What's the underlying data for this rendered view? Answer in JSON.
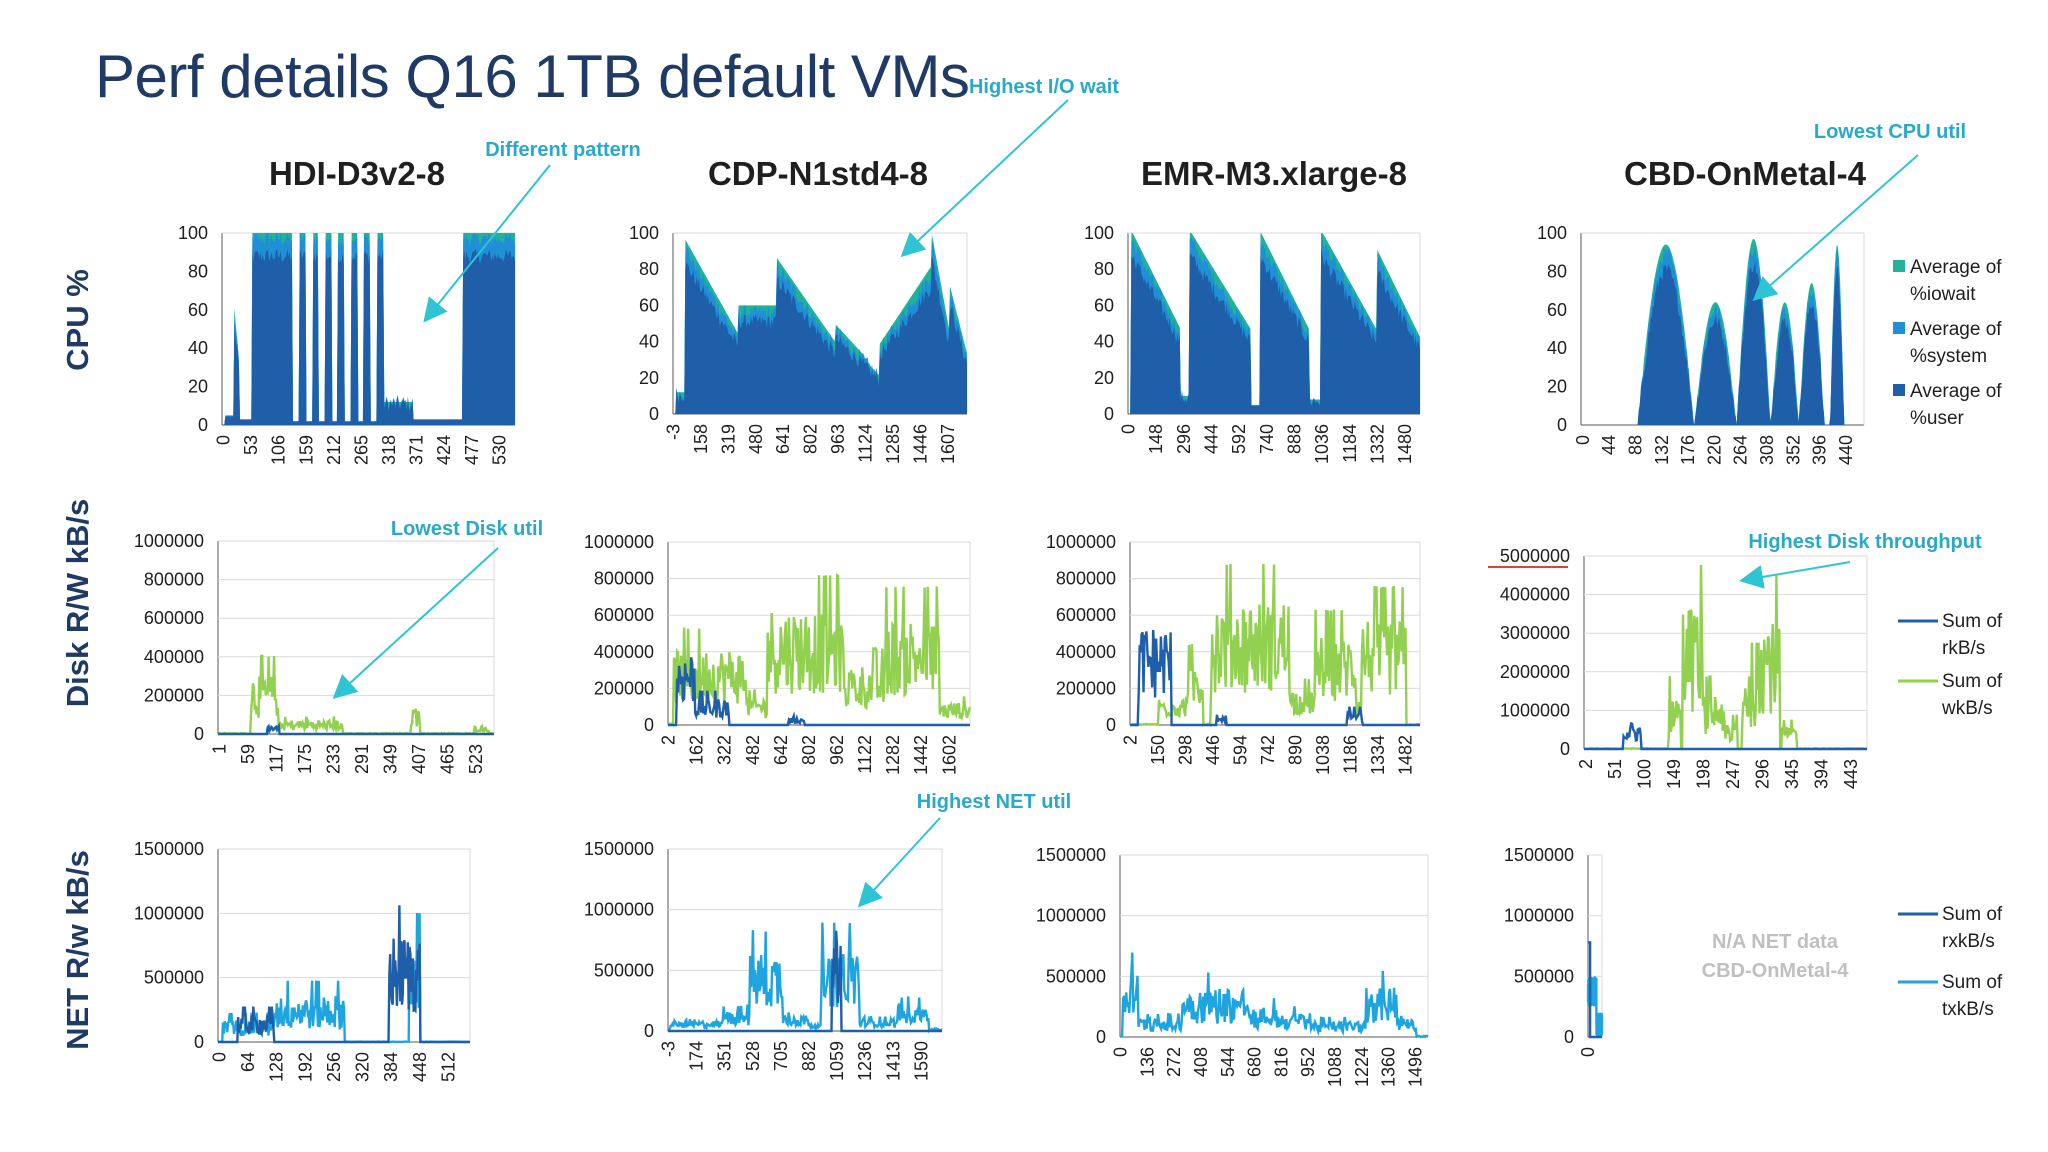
{
  "slide": {
    "title": "Perf details Q16 1TB default VMs",
    "columns": [
      "HDI-D3v2-8",
      "CDP-N1std4-8",
      "EMR-M3.xlarge-8",
      "CBD-OnMetal-4"
    ],
    "rows": [
      "CPU %",
      "Disk R/W kB/s",
      "NET R/w kB/s"
    ],
    "colors": {
      "title": "#1f3a64",
      "annotation": "#29a9c9",
      "arrow": "#2ec4d3",
      "user": "#1f5ea8",
      "system": "#1f8fd6",
      "iowait": "#21b39a",
      "rkb": "#1f5ea8",
      "wkb": "#92d050",
      "rxkb": "#1f5ea8",
      "txkb": "#1ea4de",
      "na": "#bfbfbf",
      "axis": "#595959",
      "grid": "#d9d9d9",
      "text": "#1f1f1f"
    }
  },
  "annotations": [
    {
      "text": "Highest I/O wait"
    },
    {
      "text": "Different pattern"
    },
    {
      "text": "Lowest CPU util"
    },
    {
      "text": "Lowest Disk util"
    },
    {
      "text": "Highest Disk throughput"
    },
    {
      "text": "Highest NET util"
    }
  ],
  "na_text": [
    "N/A NET data",
    "CBD-OnMetal-4"
  ],
  "legends": {
    "cpu": [
      "Average of %iowait",
      "Average of %system",
      "Average of %user"
    ],
    "disk": [
      "Sum of rkB/s",
      "Sum of wkB/s"
    ],
    "net": [
      "Sum of rxkB/s",
      "Sum of txkB/s"
    ]
  },
  "chart_data": [
    {
      "id": "cpu-hdi",
      "type": "area",
      "title": "HDI-D3v2-8",
      "ylabel": "CPU %",
      "ylim": [
        0,
        100
      ],
      "yticks": [
        "0",
        "20",
        "40",
        "60",
        "80",
        "100"
      ],
      "xticks": [
        "0",
        "53",
        "106",
        "159",
        "212",
        "265",
        "318",
        "371",
        "424",
        "477",
        "530"
      ],
      "xmax": 560,
      "series": [
        "Average of %user",
        "Average of %system",
        "Average of %iowait"
      ]
    },
    {
      "id": "cpu-cdp",
      "type": "area",
      "title": "CDP-N1std4-8",
      "ylim": [
        0,
        100
      ],
      "yticks": [
        "0",
        "20",
        "40",
        "60",
        "80",
        "100"
      ],
      "xticks": [
        "-3",
        "158",
        "319",
        "480",
        "641",
        "802",
        "963",
        "1124",
        "1285",
        "1446",
        "1607"
      ],
      "xmax": 1720,
      "series": [
        "Average of %user",
        "Average of %system",
        "Average of %iowait"
      ]
    },
    {
      "id": "cpu-emr",
      "type": "area",
      "title": "EMR-M3.xlarge-8",
      "ylim": [
        0,
        100
      ],
      "yticks": [
        "0",
        "20",
        "40",
        "60",
        "80",
        "100"
      ],
      "xticks": [
        "0",
        "148",
        "296",
        "444",
        "592",
        "740",
        "888",
        "1036",
        "1184",
        "1332",
        "1480"
      ],
      "xmax": 1560,
      "series": [
        "Average of %user",
        "Average of %system",
        "Average of %iowait"
      ]
    },
    {
      "id": "cpu-cbd",
      "type": "area",
      "title": "CBD-OnMetal-4",
      "ylim": [
        0,
        100
      ],
      "yticks": [
        "0",
        "20",
        "40",
        "60",
        "80",
        "100"
      ],
      "xticks": [
        "0",
        "44",
        "88",
        "132",
        "176",
        "220",
        "264",
        "308",
        "352",
        "396",
        "440"
      ],
      "xmax": 470,
      "series": [
        "Average of %user",
        "Average of %system",
        "Average of %iowait"
      ]
    },
    {
      "id": "disk-hdi",
      "type": "line",
      "ylabel": "Disk R/W kB/s",
      "ylim": [
        0,
        1000000
      ],
      "yticks": [
        "0",
        "200000",
        "400000",
        "600000",
        "800000",
        "1000000"
      ],
      "xticks": [
        "1",
        "59",
        "117",
        "175",
        "233",
        "291",
        "349",
        "407",
        "465",
        "523"
      ],
      "xmax": 560,
      "series": [
        "Sum of rkB/s",
        "Sum of wkB/s"
      ]
    },
    {
      "id": "disk-cdp",
      "type": "line",
      "ylim": [
        0,
        1000000
      ],
      "yticks": [
        "0",
        "200000",
        "400000",
        "600000",
        "800000",
        "1000000"
      ],
      "xticks": [
        "2",
        "162",
        "322",
        "482",
        "642",
        "802",
        "962",
        "1122",
        "1282",
        "1442",
        "1602"
      ],
      "xmax": 1720,
      "series": [
        "Sum of rkB/s",
        "Sum of wkB/s"
      ]
    },
    {
      "id": "disk-emr",
      "type": "line",
      "ylim": [
        0,
        1000000
      ],
      "yticks": [
        "0",
        "200000",
        "400000",
        "600000",
        "800000",
        "1000000"
      ],
      "xticks": [
        "2",
        "150",
        "298",
        "446",
        "594",
        "742",
        "890",
        "1038",
        "1186",
        "1334",
        "1482"
      ],
      "xmax": 1560,
      "series": [
        "Sum of rkB/s",
        "Sum of wkB/s"
      ]
    },
    {
      "id": "disk-cbd",
      "type": "line",
      "ylim": [
        0,
        5000000
      ],
      "yticks": [
        "0",
        "1000000",
        "2000000",
        "3000000",
        "4000000",
        "5000000"
      ],
      "xticks": [
        "2",
        "51",
        "100",
        "149",
        "198",
        "247",
        "296",
        "345",
        "394",
        "443"
      ],
      "xmax": 470,
      "series": [
        "Sum of rkB/s",
        "Sum of wkB/s"
      ]
    },
    {
      "id": "net-hdi",
      "type": "line",
      "ylabel": "NET R/w kB/s",
      "ylim": [
        0,
        1500000
      ],
      "yticks": [
        "0",
        "500000",
        "1000000",
        "1500000"
      ],
      "xticks": [
        "0",
        "64",
        "128",
        "192",
        "256",
        "320",
        "384",
        "448",
        "512"
      ],
      "xmax": 560,
      "series": [
        "Sum of rxkB/s",
        "Sum of txkB/s"
      ]
    },
    {
      "id": "net-cdp",
      "type": "line",
      "ylim": [
        0,
        1500000
      ],
      "yticks": [
        "0",
        "500000",
        "1000000",
        "1500000"
      ],
      "xticks": [
        "-3",
        "174",
        "351",
        "528",
        "705",
        "882",
        "1059",
        "1236",
        "1413",
        "1590"
      ],
      "xmax": 1720,
      "series": [
        "Sum of rxkB/s",
        "Sum of txkB/s"
      ]
    },
    {
      "id": "net-emr",
      "type": "line",
      "ylim": [
        0,
        1500000
      ],
      "yticks": [
        "0",
        "500000",
        "1000000",
        "1500000"
      ],
      "xticks": [
        "0",
        "136",
        "272",
        "408",
        "544",
        "680",
        "816",
        "952",
        "1088",
        "1224",
        "1360",
        "1496"
      ],
      "xmax": 1560,
      "series": [
        "Sum of rxkB/s",
        "Sum of txkB/s"
      ]
    },
    {
      "id": "net-cbd",
      "type": "line",
      "ylim": [
        0,
        1500000
      ],
      "yticks": [
        "0",
        "500000",
        "1000000",
        "1500000"
      ],
      "xticks": [
        "0"
      ],
      "xmax": 470,
      "series": [
        "Sum of rxkB/s",
        "Sum of txkB/s"
      ]
    }
  ]
}
